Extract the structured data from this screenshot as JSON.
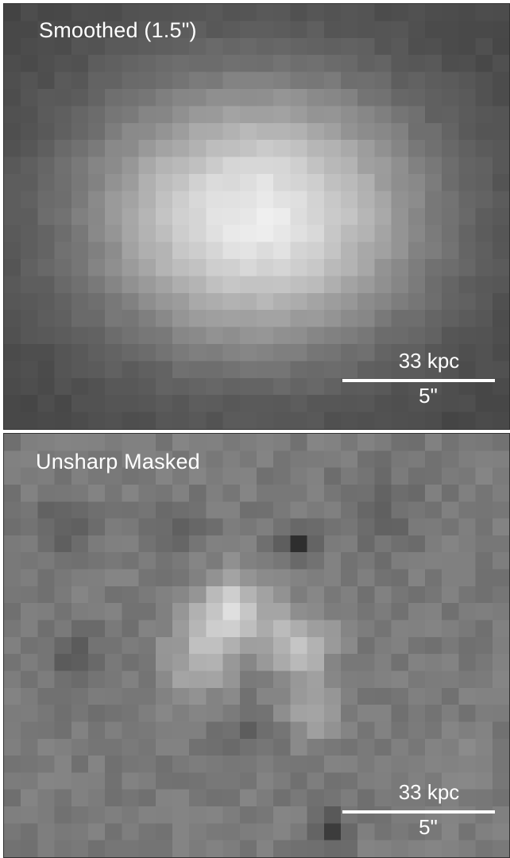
{
  "panels": {
    "top": {
      "title": "Smoothed (1.5\")",
      "scale_physical": "33 kpc",
      "scale_angular": "5\""
    },
    "bottom": {
      "title": "Unsharp Masked",
      "scale_physical": "33 kpc",
      "scale_angular": "5\""
    }
  },
  "colors": {
    "scale_bar": "#ffffff",
    "label_text": "#ffffff",
    "border": "#333333"
  }
}
